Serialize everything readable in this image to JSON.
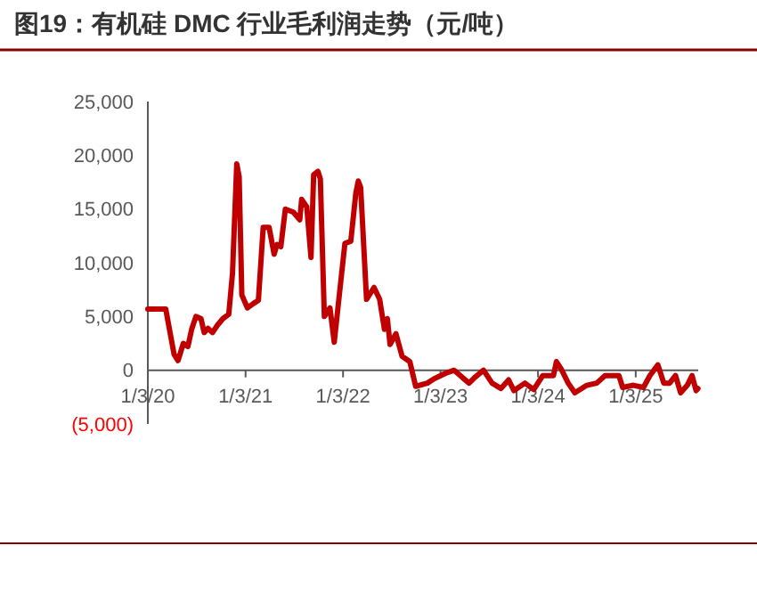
{
  "chart_data": {
    "type": "line",
    "title": "图19：有机硅 DMC 行业毛利润走势（元/吨）",
    "x": [
      "2020-01-03",
      "2020-03-10",
      "2020-04-10",
      "2020-04-25",
      "2020-05-15",
      "2020-06-01",
      "2020-06-15",
      "2020-07-01",
      "2020-07-20",
      "2020-08-01",
      "2020-08-15",
      "2020-09-01",
      "2020-09-20",
      "2020-10-10",
      "2020-11-01",
      "2020-11-15",
      "2020-12-01",
      "2020-12-10",
      "2020-12-20",
      "2021-01-10",
      "2021-02-01",
      "2021-02-20",
      "2021-03-10",
      "2021-04-01",
      "2021-04-20",
      "2021-05-01",
      "2021-05-15",
      "2021-06-01",
      "2021-07-01",
      "2021-07-25",
      "2021-08-01",
      "2021-08-20",
      "2021-09-05",
      "2021-09-15",
      "2021-10-01",
      "2021-10-10",
      "2021-10-25",
      "2021-11-15",
      "2021-12-01",
      "2021-12-20",
      "2022-01-10",
      "2022-02-01",
      "2022-02-20",
      "2022-03-01",
      "2022-03-10",
      "2022-04-01",
      "2022-04-29",
      "2022-05-20",
      "2022-06-07",
      "2022-06-18",
      "2022-06-28",
      "2022-07-20",
      "2022-08-12",
      "2022-09-10",
      "2022-10-02",
      "2022-11-15",
      "2022-12-10",
      "2023-01-21",
      "2023-02-23",
      "2023-03-27",
      "2023-04-20",
      "2023-05-10",
      "2023-06-13",
      "2023-07-15",
      "2023-08-17",
      "2023-09-15",
      "2023-10-05",
      "2023-11-15",
      "2023-12-18",
      "2024-01-21",
      "2024-03-01",
      "2024-03-12",
      "2024-03-30",
      "2024-04-25",
      "2024-05-20",
      "2024-07-04",
      "2024-08-10",
      "2024-09-10",
      "2024-11-01",
      "2024-11-15",
      "2024-12-25",
      "2025-02-01",
      "2025-02-25",
      "2025-03-27",
      "2025-04-18",
      "2025-05-10",
      "2025-06-01",
      "2025-06-20",
      "2025-07-15",
      "2025-08-02",
      "2025-08-17",
      "2025-08-24"
    ],
    "series": [
      {
        "color": "#c00000",
        "values": [
          5700,
          5700,
          1500,
          900,
          2500,
          2200,
          3800,
          5000,
          4800,
          3500,
          3900,
          3500,
          4200,
          4800,
          5200,
          9000,
          19200,
          18000,
          7000,
          5800,
          6200,
          6500,
          13300,
          13300,
          10800,
          11700,
          11500,
          15000,
          14700,
          14000,
          15900,
          15200,
          10500,
          18200,
          18500,
          17800,
          5000,
          5800,
          2600,
          7000,
          11800,
          12000,
          16500,
          17600,
          17000,
          6600,
          7700,
          6600,
          3800,
          4800,
          2400,
          3400,
          1300,
          800,
          -1500,
          -1200,
          -800,
          -300,
          0,
          -700,
          -1200,
          -700,
          0,
          -1200,
          -1700,
          -900,
          -1900,
          -1200,
          -1800,
          -500,
          -500,
          800,
          100,
          -1200,
          -2100,
          -1400,
          -1200,
          -500,
          -500,
          -1600,
          -1400,
          -1600,
          -500,
          500,
          -1200,
          -1200,
          -500,
          -2100,
          -1400,
          -500,
          -1900,
          -1700
        ]
      }
    ],
    "xlim": [
      "2020-01-03",
      "2025-08-25"
    ],
    "xticks": [
      {
        "value": "2020-01-03",
        "label": "1/3/20"
      },
      {
        "value": "2021-01-03",
        "label": "1/3/21"
      },
      {
        "value": "2022-01-03",
        "label": "1/3/22"
      },
      {
        "value": "2023-01-03",
        "label": "1/3/23"
      },
      {
        "value": "2024-01-03",
        "label": "1/3/24"
      },
      {
        "value": "2025-01-03",
        "label": "1/3/25"
      }
    ],
    "ylim": [
      -5000,
      25000
    ],
    "yticks": [
      {
        "value": -5000,
        "label": "(5,000)"
      },
      0,
      {
        "value": 5000,
        "label": "5,000"
      },
      {
        "value": 10000,
        "label": "10,000"
      },
      {
        "value": 15000,
        "label": "15,000"
      },
      {
        "value": 20000,
        "label": "20,000"
      },
      {
        "value": 25000,
        "label": "25,000"
      }
    ],
    "marker": "none",
    "line_style": "solid"
  }
}
